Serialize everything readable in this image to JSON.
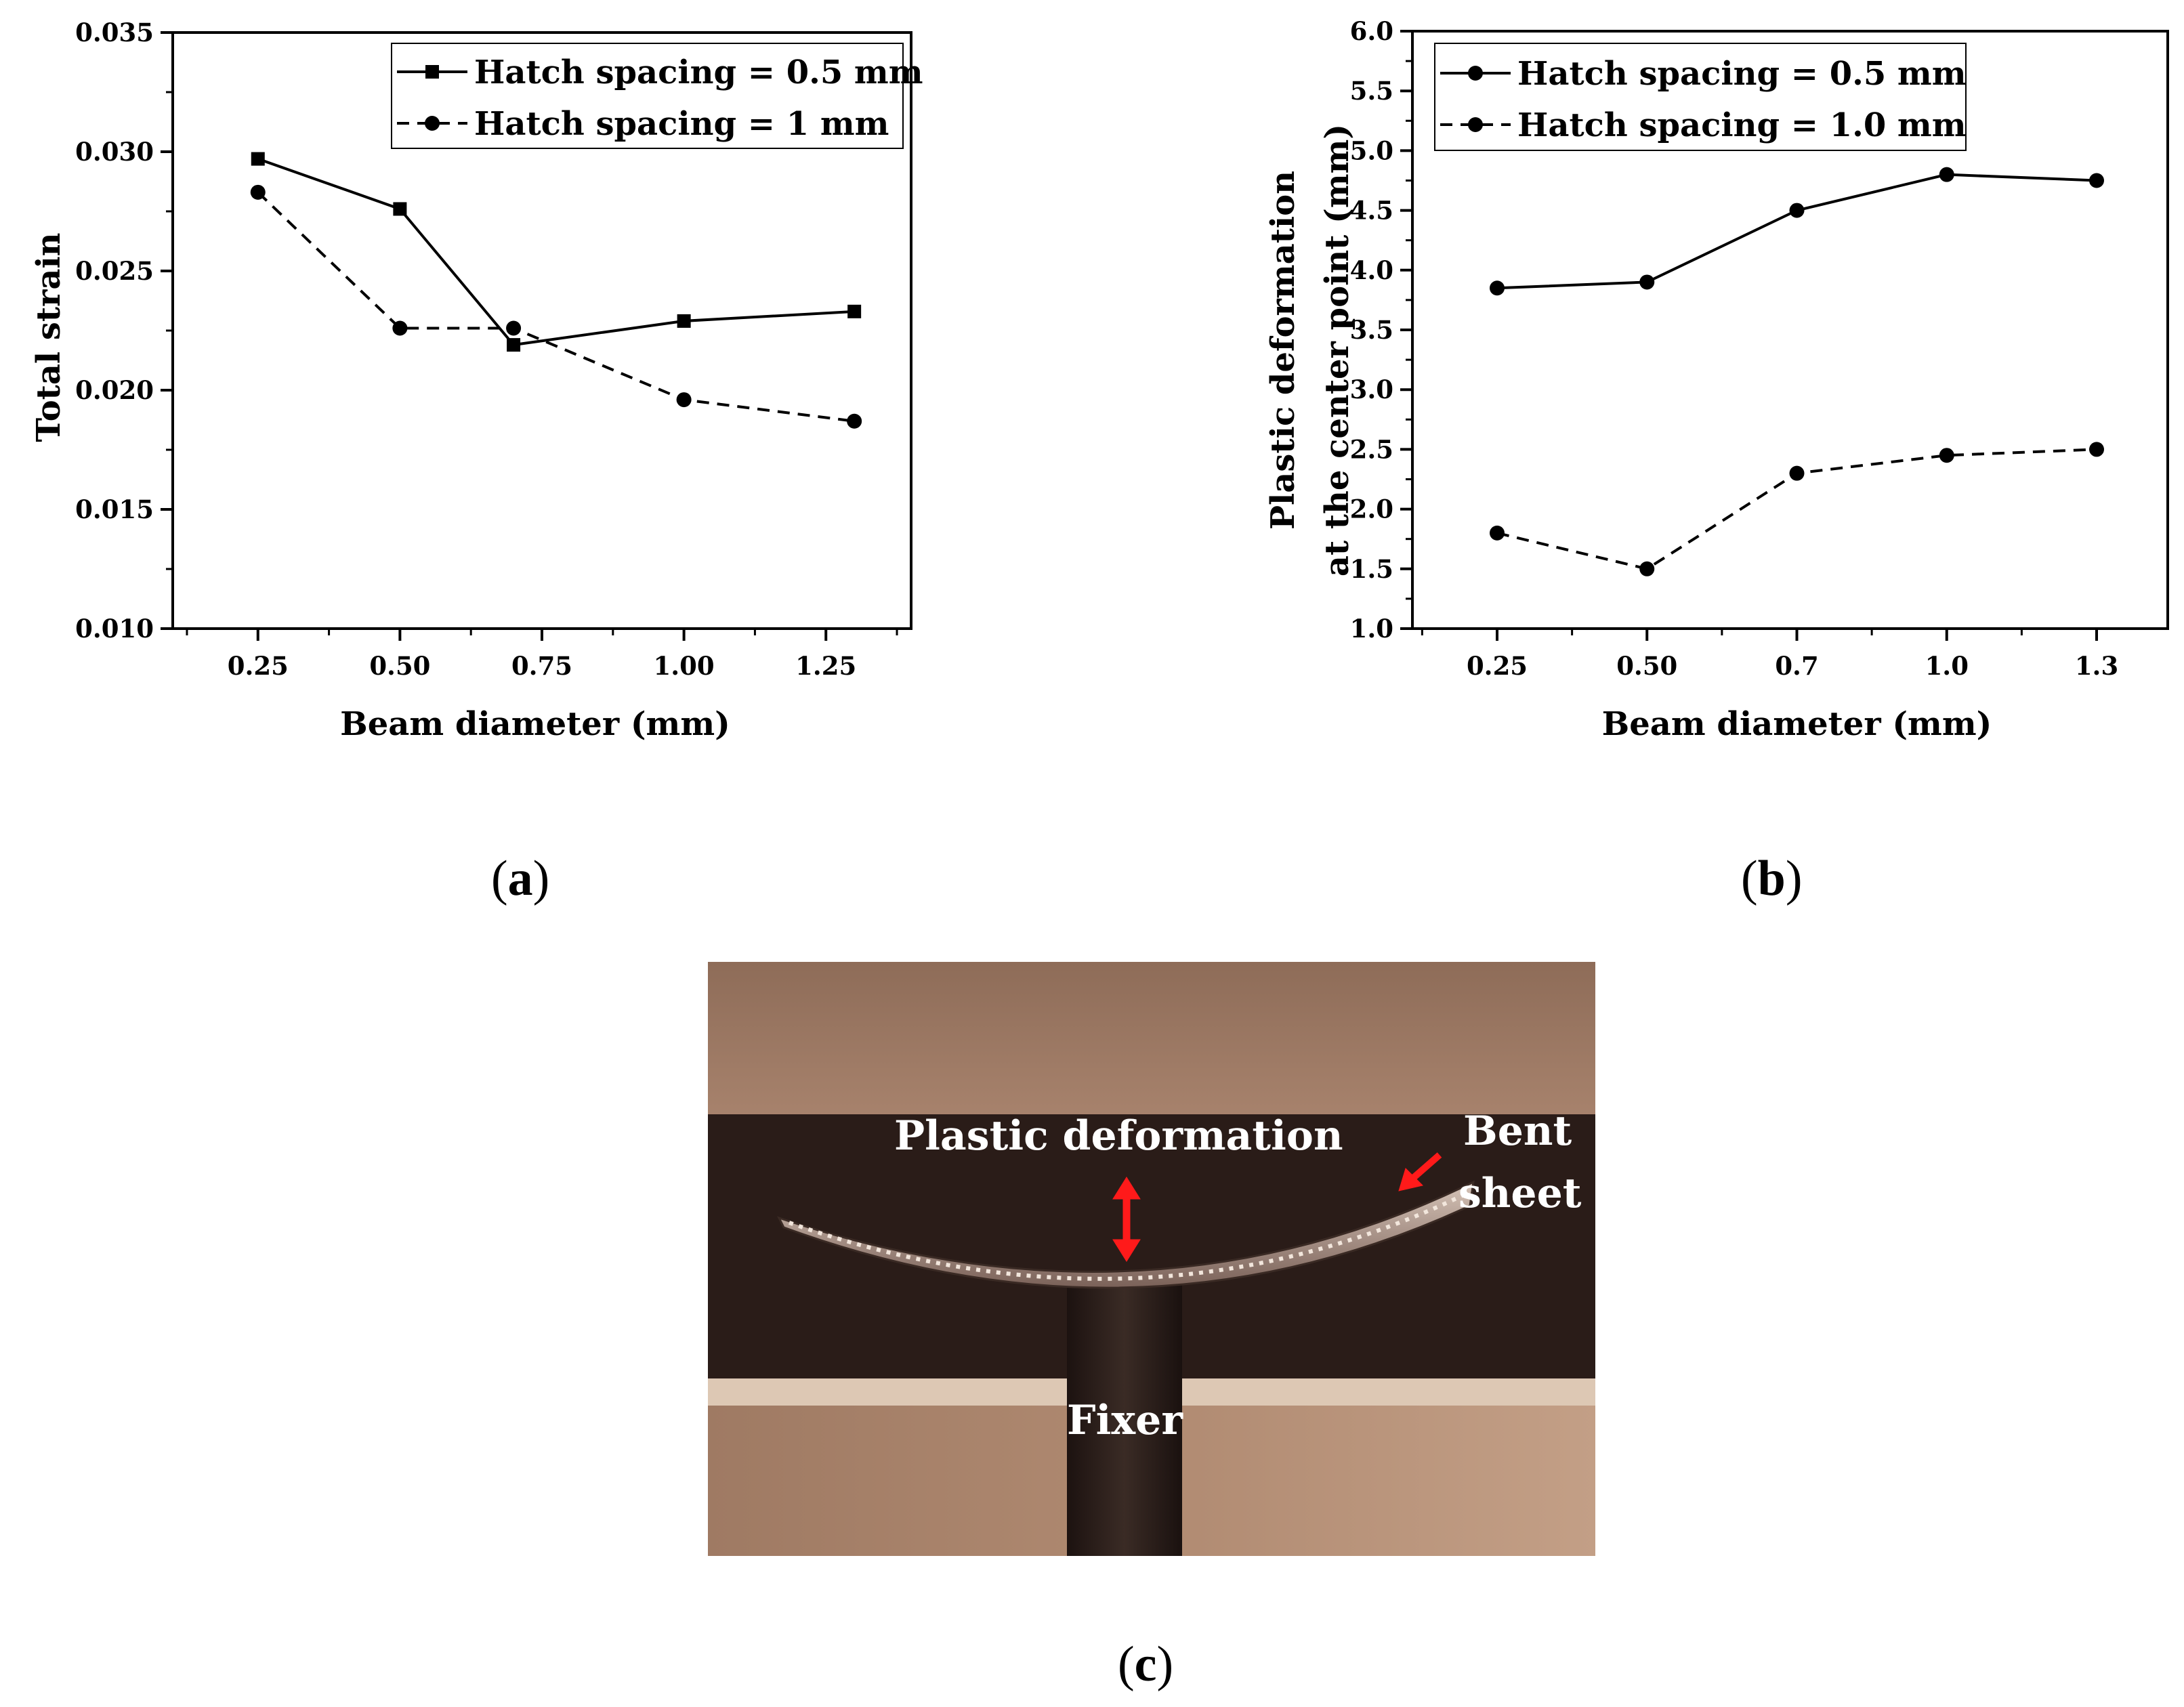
{
  "chart_data": [
    {
      "id": "a",
      "type": "line",
      "xlabel": "Beam diameter (mm)",
      "ylabel": "Total strain",
      "xlim": [
        0.1,
        1.4
      ],
      "ylim": [
        0.01,
        0.035
      ],
      "x_ticks": [
        0.25,
        0.5,
        0.75,
        1.0,
        1.25
      ],
      "x_tick_labels": [
        "0.25",
        "0.50",
        "0.75",
        "1.00",
        "1.25"
      ],
      "y_ticks": [
        0.01,
        0.015,
        0.02,
        0.025,
        0.03,
        0.035
      ],
      "y_tick_labels": [
        "0.010",
        "0.015",
        "0.020",
        "0.025",
        "0.030",
        "0.035"
      ],
      "legend_position": "top-right",
      "series": [
        {
          "name": "Hatch spacing = 0.5 mm",
          "marker": "square",
          "dash": "solid",
          "x": [
            0.25,
            0.5,
            0.7,
            1.0,
            1.3
          ],
          "values": [
            0.0297,
            0.0276,
            0.0219,
            0.0229,
            0.0233
          ]
        },
        {
          "name": "Hatch spacing = 1 mm",
          "marker": "circle",
          "dash": "dashed",
          "x": [
            0.25,
            0.5,
            0.7,
            1.0,
            1.3
          ],
          "values": [
            0.0283,
            0.0226,
            0.0226,
            0.0196,
            0.0187
          ]
        }
      ]
    },
    {
      "id": "b",
      "type": "line",
      "xlabel": "Beam diameter (mm)",
      "ylabel_lines": [
        "Plastic deformation",
        "at the center point (mm)"
      ],
      "categories": [
        "0.25",
        "0.50",
        "0.7",
        "1.0",
        "1.3"
      ],
      "ylim": [
        1.0,
        6.0
      ],
      "y_ticks": [
        1.0,
        1.5,
        2.0,
        2.5,
        3.0,
        3.5,
        4.0,
        4.5,
        5.0,
        5.5,
        6.0
      ],
      "y_tick_labels": [
        "1.0",
        "1.5",
        "2.0",
        "2.5",
        "3.0",
        "3.5",
        "4.0",
        "4.5",
        "5.0",
        "5.5",
        "6.0"
      ],
      "legend_position": "top-left",
      "series": [
        {
          "name": "Hatch spacing = 0.5 mm",
          "marker": "circle",
          "dash": "solid",
          "values": [
            3.85,
            3.9,
            4.5,
            4.8,
            4.75
          ]
        },
        {
          "name": "Hatch spacing = 1.0 mm",
          "marker": "circle",
          "dash": "dashed",
          "values": [
            1.8,
            1.5,
            2.3,
            2.45,
            2.5
          ]
        }
      ]
    }
  ],
  "panel_labels": {
    "a": "a",
    "b": "b",
    "c": "c"
  },
  "photo": {
    "plastic_deformation": "Plastic deformation",
    "bent_line1": "Bent",
    "bent_line2": "sheet",
    "fixer": "Fixer"
  },
  "colors": {
    "line": "#000000",
    "arrow": "#ff1a1a"
  }
}
